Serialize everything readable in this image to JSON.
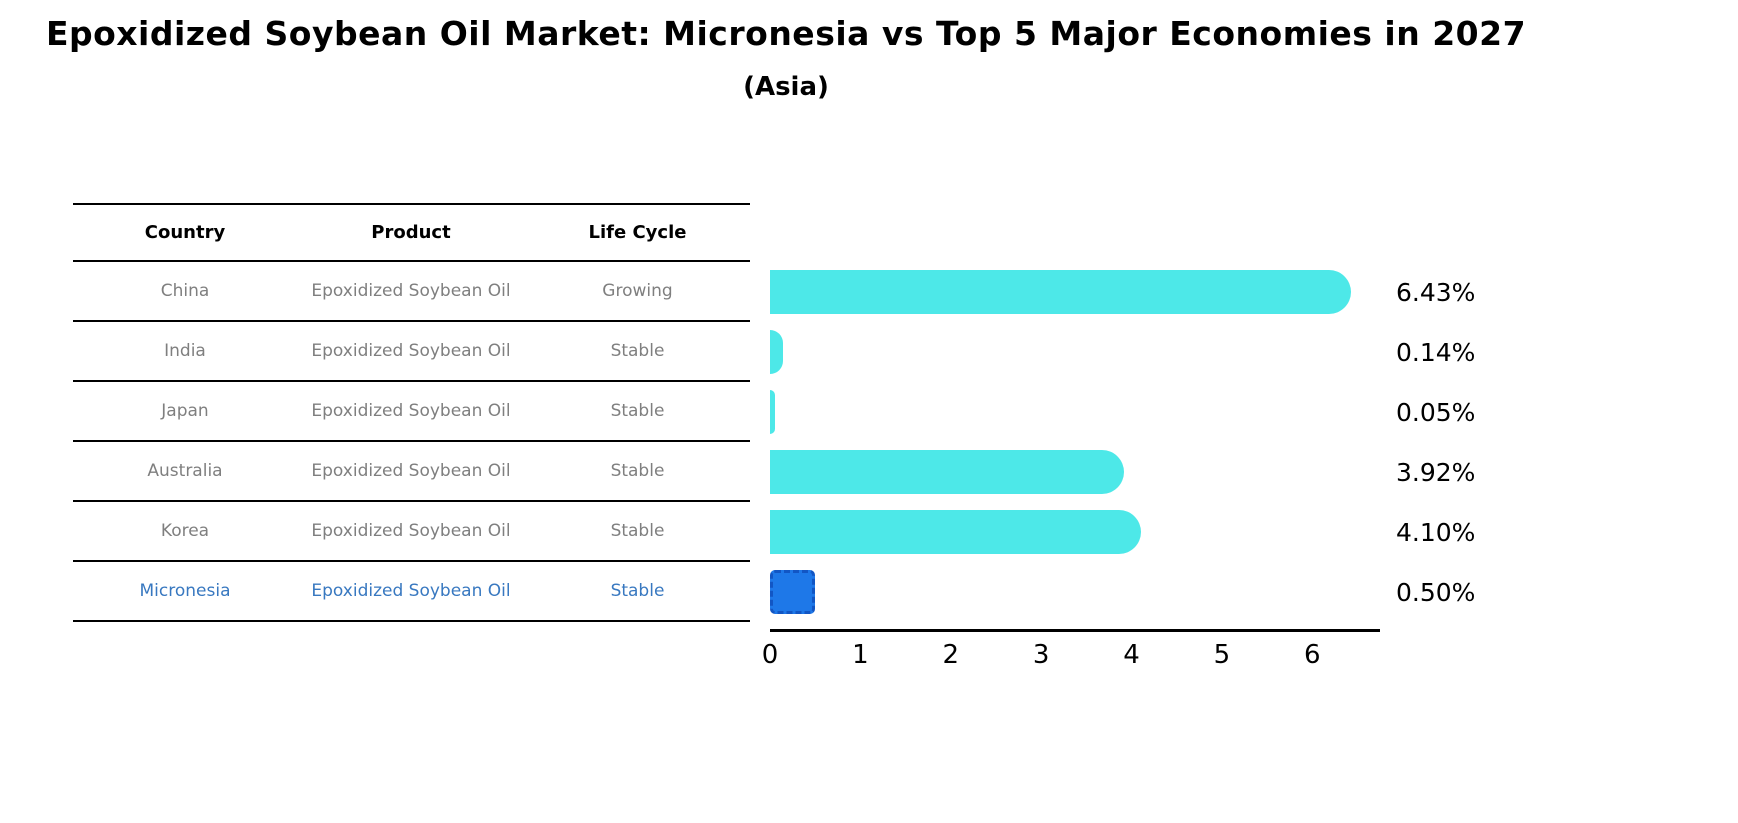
{
  "chart_data": {
    "type": "bar",
    "orientation": "horizontal",
    "title": "Epoxidized Soybean Oil Market: Micronesia vs Top 5 Major Economies in 2027",
    "subtitle": "(Asia)",
    "columns": [
      "Country",
      "Product",
      "Life Cycle"
    ],
    "rows": [
      {
        "country": "China",
        "product": "Epoxidized Soybean Oil",
        "life_cycle": "Growing",
        "value": 6.43,
        "label": "6.43%",
        "highlight": false
      },
      {
        "country": "India",
        "product": "Epoxidized Soybean Oil",
        "life_cycle": "Stable",
        "value": 0.14,
        "label": "0.14%",
        "highlight": false
      },
      {
        "country": "Japan",
        "product": "Epoxidized Soybean Oil",
        "life_cycle": "Stable",
        "value": 0.05,
        "label": "0.05%",
        "highlight": false
      },
      {
        "country": "Australia",
        "product": "Epoxidized Soybean Oil",
        "life_cycle": "Stable",
        "value": 3.92,
        "label": "3.92%",
        "highlight": false
      },
      {
        "country": "Korea",
        "product": "Epoxidized Soybean Oil",
        "life_cycle": "Stable",
        "value": 4.1,
        "label": "4.10%",
        "highlight": false
      },
      {
        "country": "Micronesia",
        "product": "Epoxidized Soybean Oil",
        "life_cycle": "Stable",
        "value": 0.5,
        "label": "0.50%",
        "highlight": true
      }
    ],
    "x_ticks": [
      0,
      1,
      2,
      3,
      4,
      5,
      6
    ],
    "xlim": [
      0,
      6.75
    ],
    "legend": "none",
    "grid": false,
    "colors": {
      "bar": "#4de8e8",
      "highlight_bar": "#1e78e8",
      "highlight_border": "#1256c4",
      "highlight_text": "#3878c0",
      "cell_text": "#7f7f7f",
      "header_text": "#000000",
      "value_text": "#000000"
    }
  }
}
